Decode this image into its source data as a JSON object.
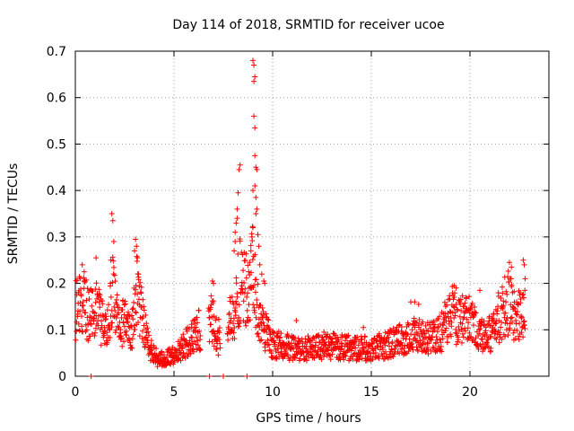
{
  "colors": {
    "series": "#ff0000",
    "grid": "#a0a0a0",
    "axis": "#000000"
  },
  "chart_data": {
    "type": "scatter",
    "title": "Day 114 of 2018, SRMTID for receiver ucoe",
    "xlabel": "GPS time / hours",
    "ylabel": "SRMTID / TECUs",
    "xlim": [
      0,
      24
    ],
    "ylim": [
      0,
      0.7
    ],
    "grid": true,
    "xticks": [
      0,
      5,
      10,
      15,
      20
    ],
    "xtick_labels": [
      "0",
      "5",
      "10",
      "15",
      "20"
    ],
    "yticks": [
      0,
      0.1,
      0.2,
      0.3,
      0.4,
      0.5,
      0.6,
      0.7
    ],
    "ytick_labels": [
      "0",
      "0.1",
      "0.2",
      "0.3",
      "0.4",
      "0.5",
      "0.6",
      "0.7"
    ],
    "marker": "+",
    "series": [
      {
        "name": "SRMTID",
        "trend": {
          "x": [
            0,
            0.3,
            0.8,
            1.0,
            1.3,
            1.6,
            1.9,
            2.2,
            2.6,
            2.9,
            3.1,
            3.4,
            3.8,
            4.2,
            4.6,
            5.0,
            5.4,
            5.8,
            6.2,
            6.5,
            6.9,
            7.2,
            7.5,
            7.8,
            8.1,
            8.4,
            8.7,
            9.0,
            9.3,
            9.6,
            10.0,
            11,
            12,
            13,
            14,
            15,
            16,
            17,
            18,
            18.5,
            19,
            19.3,
            19.6,
            20,
            20.4,
            20.8,
            21.2,
            21.6,
            22,
            22.4,
            22.8
          ],
          "y": [
            0.14,
            0.16,
            0.13,
            0.15,
            0.12,
            0.09,
            0.18,
            0.11,
            0.12,
            0.1,
            0.2,
            0.12,
            0.06,
            0.035,
            0.04,
            0.045,
            0.06,
            0.08,
            0.1,
            0.1,
            0.13,
            0.08,
            0.1,
            0.12,
            0.15,
            0.22,
            0.18,
            0.25,
            0.12,
            0.1,
            0.07,
            0.06,
            0.06,
            0.065,
            0.06,
            0.06,
            0.07,
            0.09,
            0.08,
            0.09,
            0.14,
            0.12,
            0.12,
            0.13,
            0.09,
            0.08,
            0.1,
            0.14,
            0.16,
            0.12,
            0.16
          ]
        },
        "spikes": [
          {
            "x": 1.85,
            "y": 0.35
          },
          {
            "x": 1.9,
            "y": 0.335
          },
          {
            "x": 1.95,
            "y": 0.29
          },
          {
            "x": 1.8,
            "y": 0.25
          },
          {
            "x": 3.05,
            "y": 0.295
          },
          {
            "x": 3.1,
            "y": 0.28
          },
          {
            "x": 3.0,
            "y": 0.27
          },
          {
            "x": 3.15,
            "y": 0.255
          },
          {
            "x": 3.2,
            "y": 0.22
          },
          {
            "x": 8.05,
            "y": 0.27
          },
          {
            "x": 8.1,
            "y": 0.29
          },
          {
            "x": 8.15,
            "y": 0.33
          },
          {
            "x": 8.2,
            "y": 0.36
          },
          {
            "x": 8.25,
            "y": 0.395
          },
          {
            "x": 8.3,
            "y": 0.445
          },
          {
            "x": 8.35,
            "y": 0.455
          },
          {
            "x": 8.2,
            "y": 0.34
          },
          {
            "x": 8.1,
            "y": 0.31
          },
          {
            "x": 9.0,
            "y": 0.4
          },
          {
            "x": 9.05,
            "y": 0.56
          },
          {
            "x": 9.1,
            "y": 0.535
          },
          {
            "x": 9.0,
            "y": 0.68
          },
          {
            "x": 9.05,
            "y": 0.67
          },
          {
            "x": 9.1,
            "y": 0.645
          },
          {
            "x": 9.05,
            "y": 0.635
          },
          {
            "x": 9.1,
            "y": 0.475
          },
          {
            "x": 9.15,
            "y": 0.45
          },
          {
            "x": 9.2,
            "y": 0.445
          },
          {
            "x": 9.1,
            "y": 0.41
          },
          {
            "x": 9.15,
            "y": 0.385
          },
          {
            "x": 9.2,
            "y": 0.36
          },
          {
            "x": 9.15,
            "y": 0.35
          },
          {
            "x": 9.25,
            "y": 0.305
          },
          {
            "x": 9.3,
            "y": 0.28
          },
          {
            "x": 9.35,
            "y": 0.24
          },
          {
            "x": 9.45,
            "y": 0.22
          },
          {
            "x": 9.0,
            "y": 0.32
          },
          {
            "x": 8.9,
            "y": 0.27
          },
          {
            "x": 8.95,
            "y": 0.3
          },
          {
            "x": 9.55,
            "y": 0.205
          },
          {
            "x": 9.6,
            "y": 0.2
          },
          {
            "x": 0.35,
            "y": 0.24
          },
          {
            "x": 0.45,
            "y": 0.225
          },
          {
            "x": 1.05,
            "y": 0.255
          },
          {
            "x": 6.95,
            "y": 0.205
          },
          {
            "x": 7.0,
            "y": 0.2
          },
          {
            "x": 19.2,
            "y": 0.195
          },
          {
            "x": 19.3,
            "y": 0.19
          },
          {
            "x": 20.5,
            "y": 0.185
          },
          {
            "x": 22.0,
            "y": 0.245
          },
          {
            "x": 22.1,
            "y": 0.235
          },
          {
            "x": 22.7,
            "y": 0.25
          },
          {
            "x": 22.75,
            "y": 0.24
          },
          {
            "x": 22.8,
            "y": 0.21
          },
          {
            "x": 17.0,
            "y": 0.16
          },
          {
            "x": 17.2,
            "y": 0.16
          },
          {
            "x": 17.4,
            "y": 0.155
          },
          {
            "x": 11.2,
            "y": 0.12
          },
          {
            "x": 12.6,
            "y": 0.095
          },
          {
            "x": 14.6,
            "y": 0.105
          }
        ],
        "zeros": [
          {
            "x": 0.8,
            "y": 0
          },
          {
            "x": 6.8,
            "y": 0
          },
          {
            "x": 7.5,
            "y": 0
          },
          {
            "x": 8.7,
            "y": 0
          }
        ]
      }
    ]
  }
}
